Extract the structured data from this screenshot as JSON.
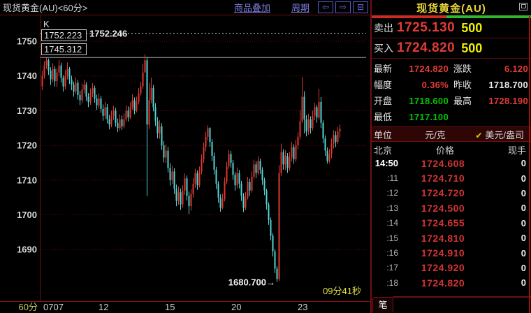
{
  "colors": {
    "up": "#e0392f",
    "down": "#55d4d4",
    "grid": "#5a0a0a",
    "frame": "#6f100e",
    "accent_red": "#e33b35",
    "yellow": "#f0f000",
    "green": "#00c300"
  },
  "chart_pane": {
    "title": "现货黄金(AU)<60分>",
    "toolbar": {
      "overlay_label": "商品叠加",
      "period_label_link": "周期",
      "icons": [
        "left-arrow-icon",
        "right-arrow-icon",
        "split-window-icon"
      ],
      "icon_glyphs": {
        "left": "⇦",
        "right": "⇨",
        "split": "⊟"
      }
    },
    "corner_label": "K",
    "low_label": "1680.700→",
    "countdown": "09分41秒",
    "period_label": "60分"
  },
  "chart_data": {
    "type": "candlestick",
    "title": "现货黄金(AU) 60分钟K线",
    "y_ticks": [
      1750,
      1740,
      1730,
      1720,
      1710,
      1700,
      1690
    ],
    "x_ticks": [
      "0707",
      "12",
      "15",
      "20",
      "23"
    ],
    "ylim": [
      1676,
      1756
    ],
    "grid": "dotted-red",
    "high_line": 1752.246,
    "box_top": 1752.223,
    "box_bottom": 1745.312,
    "mid_line": 1745.312,
    "low_marker": 1680.7,
    "open_first": 1737.0,
    "candles": [
      [
        1741.5,
        1736.0,
        1740.0
      ],
      [
        1744.2,
        1739.2,
        1743.0
      ],
      [
        1745.3,
        1742.0,
        1744.5
      ],
      [
        1745.0,
        1740.3,
        1741.5
      ],
      [
        1742.5,
        1737.4,
        1739.0
      ],
      [
        1743.6,
        1738.2,
        1742.0
      ],
      [
        1742.8,
        1737.0,
        1738.5
      ],
      [
        1742.2,
        1736.8,
        1741.0
      ],
      [
        1744.6,
        1740.0,
        1743.0
      ],
      [
        1743.8,
        1738.1,
        1739.5
      ],
      [
        1740.2,
        1735.5,
        1737.0
      ],
      [
        1741.7,
        1736.2,
        1740.0
      ],
      [
        1743.9,
        1739.0,
        1742.0
      ],
      [
        1742.6,
        1737.7,
        1739.0
      ],
      [
        1740.1,
        1735.9,
        1737.5
      ],
      [
        1738.4,
        1734.0,
        1735.5
      ],
      [
        1739.6,
        1734.8,
        1738.0
      ],
      [
        1738.8,
        1733.2,
        1734.5
      ],
      [
        1735.7,
        1731.6,
        1733.0
      ],
      [
        1737.8,
        1732.1,
        1736.0
      ],
      [
        1738.9,
        1735.0,
        1737.5
      ],
      [
        1738.2,
        1732.8,
        1734.0
      ],
      [
        1735.1,
        1731.0,
        1732.5
      ],
      [
        1736.4,
        1731.7,
        1735.0
      ],
      [
        1737.9,
        1733.9,
        1736.5
      ],
      [
        1737.2,
        1732.3,
        1733.5
      ],
      [
        1734.6,
        1730.2,
        1731.5
      ],
      [
        1735.0,
        1730.6,
        1733.5
      ],
      [
        1734.3,
        1729.4,
        1730.5
      ],
      [
        1731.8,
        1727.1,
        1728.5
      ],
      [
        1732.5,
        1727.6,
        1731.0
      ],
      [
        1731.9,
        1726.3,
        1727.5
      ],
      [
        1728.8,
        1724.6,
        1726.0
      ],
      [
        1730.0,
        1725.2,
        1728.5
      ],
      [
        1731.4,
        1727.3,
        1730.0
      ],
      [
        1730.8,
        1725.4,
        1726.5
      ],
      [
        1727.7,
        1723.8,
        1725.0
      ],
      [
        1729.0,
        1724.2,
        1727.5
      ],
      [
        1728.6,
        1724.5,
        1725.5
      ],
      [
        1729.2,
        1724.9,
        1727.5
      ],
      [
        1731.6,
        1726.8,
        1730.0
      ],
      [
        1731.2,
        1726.9,
        1728.0
      ],
      [
        1732.4,
        1727.5,
        1731.0
      ],
      [
        1734.7,
        1730.3,
        1733.0
      ],
      [
        1733.8,
        1729.0,
        1730.0
      ],
      [
        1734.0,
        1729.5,
        1732.5
      ],
      [
        1736.5,
        1731.8,
        1735.0
      ],
      [
        1738.3,
        1734.4,
        1737.0
      ],
      [
        1743.5,
        1736.3,
        1741.0
      ],
      [
        1746.2,
        1741.0,
        1744.5
      ],
      [
        1745.5,
        1705.5,
        1726.0
      ],
      [
        1738.0,
        1724.7,
        1733.0
      ],
      [
        1739.5,
        1732.1,
        1736.5
      ],
      [
        1737.4,
        1729.8,
        1731.0
      ],
      [
        1732.2,
        1725.6,
        1727.0
      ],
      [
        1728.1,
        1722.0,
        1723.5
      ],
      [
        1727.3,
        1721.9,
        1725.5
      ],
      [
        1726.4,
        1718.7,
        1720.0
      ],
      [
        1721.2,
        1715.1,
        1716.5
      ],
      [
        1720.3,
        1714.9,
        1718.5
      ],
      [
        1719.6,
        1712.2,
        1713.5
      ],
      [
        1714.8,
        1708.4,
        1710.0
      ],
      [
        1714.1,
        1708.9,
        1712.5
      ],
      [
        1713.4,
        1706.0,
        1707.5
      ],
      [
        1708.7,
        1702.5,
        1704.0
      ],
      [
        1708.2,
        1702.9,
        1706.5
      ],
      [
        1707.6,
        1701.4,
        1703.0
      ],
      [
        1708.5,
        1702.1,
        1707.0
      ],
      [
        1711.9,
        1705.8,
        1710.5
      ],
      [
        1711.3,
        1704.1,
        1705.5
      ],
      [
        1706.7,
        1700.3,
        1702.5
      ],
      [
        1707.4,
        1701.2,
        1706.0
      ],
      [
        1710.6,
        1704.9,
        1709.0
      ],
      [
        1713.3,
        1707.8,
        1712.0
      ],
      [
        1712.8,
        1707.2,
        1708.5
      ],
      [
        1713.9,
        1707.9,
        1712.5
      ],
      [
        1717.4,
        1711.6,
        1716.0
      ],
      [
        1720.8,
        1714.9,
        1719.5
      ],
      [
        1723.9,
        1718.3,
        1722.5
      ],
      [
        1725.8,
        1721.4,
        1725.0
      ],
      [
        1725.2,
        1719.6,
        1721.0
      ],
      [
        1721.8,
        1715.5,
        1717.0
      ],
      [
        1717.9,
        1711.6,
        1713.0
      ],
      [
        1713.8,
        1707.4,
        1709.0
      ],
      [
        1709.7,
        1703.5,
        1705.0
      ],
      [
        1705.9,
        1700.9,
        1702.0
      ],
      [
        1706.1,
        1701.6,
        1704.5
      ],
      [
        1710.8,
        1703.9,
        1709.5
      ],
      [
        1715.3,
        1708.8,
        1714.0
      ],
      [
        1718.7,
        1713.2,
        1717.5
      ],
      [
        1718.4,
        1713.6,
        1715.0
      ],
      [
        1715.8,
        1710.1,
        1711.5
      ],
      [
        1712.3,
        1707.0,
        1708.5
      ],
      [
        1713.6,
        1707.7,
        1712.0
      ],
      [
        1712.9,
        1707.6,
        1709.0
      ],
      [
        1709.8,
        1704.0,
        1705.5
      ],
      [
        1706.3,
        1700.8,
        1702.0
      ],
      [
        1706.6,
        1701.3,
        1705.0
      ],
      [
        1710.9,
        1704.4,
        1709.5
      ],
      [
        1710.4,
        1705.5,
        1707.0
      ],
      [
        1712.5,
        1706.4,
        1711.0
      ],
      [
        1715.9,
        1710.3,
        1714.5
      ],
      [
        1715.4,
        1710.6,
        1712.0
      ],
      [
        1716.8,
        1711.4,
        1715.5
      ],
      [
        1716.2,
        1711.8,
        1713.0
      ],
      [
        1713.7,
        1708.6,
        1710.0
      ],
      [
        1710.7,
        1705.7,
        1707.0
      ],
      [
        1707.5,
        1701.5,
        1703.0
      ],
      [
        1703.6,
        1697.1,
        1698.5
      ],
      [
        1699.2,
        1692.6,
        1694.0
      ],
      [
        1694.7,
        1688.0,
        1689.5
      ],
      [
        1690.1,
        1683.2,
        1684.5
      ],
      [
        1685.2,
        1680.7,
        1681.5
      ],
      [
        1714.3,
        1680.9,
        1712.0
      ],
      [
        1720.5,
        1711.2,
        1718.0
      ],
      [
        1718.9,
        1713.0,
        1714.5
      ],
      [
        1718.6,
        1712.8,
        1717.0
      ],
      [
        1717.8,
        1712.1,
        1713.5
      ],
      [
        1718.0,
        1712.7,
        1716.5
      ],
      [
        1721.0,
        1715.4,
        1719.5
      ],
      [
        1720.3,
        1714.7,
        1716.0
      ],
      [
        1721.6,
        1715.2,
        1720.0
      ],
      [
        1723.8,
        1718.9,
        1722.5
      ],
      [
        1730.1,
        1721.7,
        1727.0
      ],
      [
        1739.7,
        1726.4,
        1734.0
      ],
      [
        1735.6,
        1723.5,
        1727.5
      ],
      [
        1728.7,
        1722.6,
        1724.0
      ],
      [
        1729.1,
        1723.1,
        1727.5
      ],
      [
        1728.4,
        1723.4,
        1725.0
      ],
      [
        1730.0,
        1724.3,
        1728.5
      ],
      [
        1732.3,
        1727.2,
        1731.0
      ],
      [
        1731.7,
        1726.5,
        1728.0
      ],
      [
        1736.3,
        1727.4,
        1732.5
      ],
      [
        1733.9,
        1725.0,
        1726.5
      ],
      [
        1727.2,
        1720.6,
        1722.0
      ],
      [
        1722.9,
        1717.0,
        1718.5
      ],
      [
        1719.4,
        1714.8,
        1715.5
      ],
      [
        1719.0,
        1714.9,
        1717.5
      ],
      [
        1722.0,
        1716.3,
        1720.5
      ],
      [
        1724.4,
        1719.1,
        1723.0
      ],
      [
        1724.1,
        1719.5,
        1721.0
      ],
      [
        1725.3,
        1720.4,
        1724.0
      ],
      [
        1726.0,
        1722.2,
        1724.8
      ]
    ]
  },
  "quote_panel": {
    "title": "现货黄金(AU)",
    "sell": {
      "label": "卖出",
      "price": "1725.130",
      "qty": "500"
    },
    "buy": {
      "label": "买入",
      "price": "1724.820",
      "qty": "500"
    },
    "stats": [
      {
        "key": "latest",
        "label": "最新",
        "value": "1724.820",
        "color": "red"
      },
      {
        "key": "change",
        "label": "涨跌",
        "value": "6.120",
        "color": "red"
      },
      {
        "key": "pct",
        "label": "幅度",
        "value": "0.36%",
        "color": "red"
      },
      {
        "key": "prev-close",
        "label": "昨收",
        "value": "1718.700",
        "color": "white"
      },
      {
        "key": "open",
        "label": "开盘",
        "value": "1718.600",
        "color": "green"
      },
      {
        "key": "high",
        "label": "最高",
        "value": "1728.190",
        "color": "red"
      },
      {
        "key": "low",
        "label": "最低",
        "value": "1717.100",
        "color": "green"
      }
    ],
    "unit": {
      "label": "单位",
      "option_left": "元/克",
      "check": "✔",
      "option_right": "美元/盎司"
    },
    "table": {
      "headers": [
        "北京",
        "价格",
        "现手"
      ],
      "rows": [
        [
          "14:50",
          "1724.608",
          "0"
        ],
        [
          ":11",
          "1724.710",
          "0"
        ],
        [
          ":12",
          "1724.720",
          "0"
        ],
        [
          ":13",
          "1724.500",
          "0"
        ],
        [
          ":14",
          "1724.655",
          "0"
        ],
        [
          ":15",
          "1724.810",
          "0"
        ],
        [
          ":16",
          "1724.910",
          "0"
        ],
        [
          ":17",
          "1724.920",
          "0"
        ],
        [
          ":18",
          "1724.820",
          "0"
        ]
      ]
    },
    "bottom_tab": "笔"
  }
}
